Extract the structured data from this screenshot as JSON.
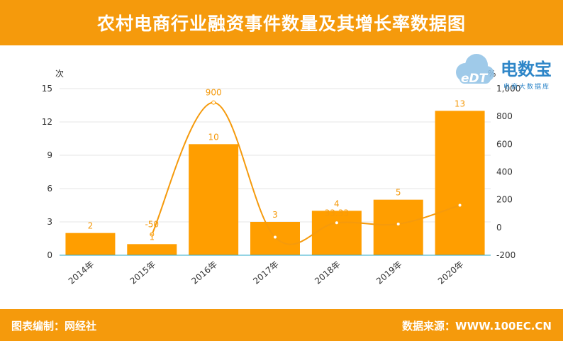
{
  "header": {
    "title": "农村电商行业融资事件数量及其增长率数据图"
  },
  "footer": {
    "left": "图表编制：网经社",
    "right": "数据来源：WWW.100EC.CN"
  },
  "logo": {
    "main": "电数宝",
    "sub": "电商大数据库",
    "badge": "eDT"
  },
  "colors": {
    "accent": "#f59a0c",
    "bar": "#ff9e00",
    "axis": "#29a9c9",
    "text": "#333333"
  },
  "chart_data": {
    "type": "bar+line",
    "categories": [
      "2014年",
      "2015年",
      "2016年",
      "2017年",
      "2018年",
      "2019年",
      "2020年"
    ],
    "series": [
      {
        "values": [
          2,
          1,
          10,
          3,
          4,
          5,
          13
        ],
        "labels": [
          "2",
          "1",
          "10",
          "3",
          "4",
          "5",
          "13"
        ]
      },
      {
        "values": [
          null,
          -50,
          900,
          -70,
          33.33,
          25,
          160
        ],
        "labels": [
          "",
          "-50",
          "900",
          "",
          "33.33",
          "",
          ""
        ]
      }
    ],
    "y_left": {
      "unit": "次",
      "ticks": [
        "0",
        "3",
        "6",
        "9",
        "12",
        "15"
      ],
      "range": [
        0,
        15
      ]
    },
    "y_right": {
      "unit": "%",
      "ticks": [
        "-200",
        "0",
        "200",
        "400",
        "600",
        "800",
        "1,000"
      ],
      "range": [
        -200,
        1000
      ]
    }
  }
}
